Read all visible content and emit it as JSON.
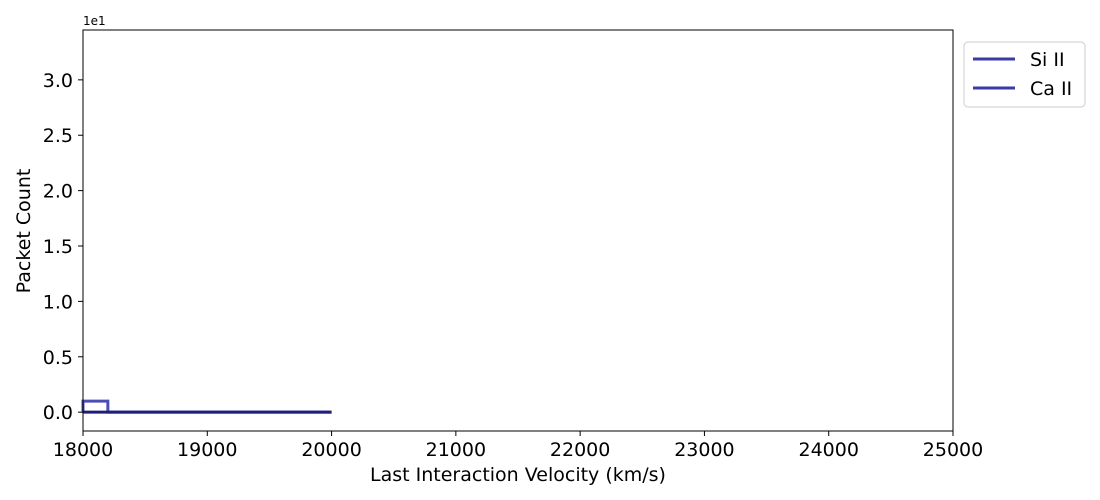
{
  "chart_data": {
    "type": "line",
    "drawstyle": "steps",
    "title": "",
    "xlabel": "Last Interaction Velocity (km/s)",
    "ylabel": "Packet Count",
    "y_offset_label": "1e1",
    "xlim": [
      18000,
      25000
    ],
    "ylim": [
      -0.17,
      3.45
    ],
    "x_ticks": [
      18000,
      19000,
      20000,
      21000,
      22000,
      23000,
      24000,
      25000
    ],
    "x_tick_labels": [
      "18000",
      "19000",
      "20000",
      "21000",
      "22000",
      "23000",
      "24000",
      "25000"
    ],
    "y_ticks": [
      0.0,
      0.5,
      1.0,
      1.5,
      2.0,
      2.5,
      3.0
    ],
    "y_tick_labels": [
      "0.0",
      "0.5",
      "1.0",
      "1.5",
      "2.0",
      "2.5",
      "3.0"
    ],
    "grid": false,
    "legend_position": "outside top-right",
    "series": [
      {
        "name": "Si II",
        "color": "#3b3ba8",
        "bin_edges": [
          18000,
          18200,
          20000
        ],
        "counts": [
          0.1,
          0.0
        ]
      },
      {
        "name": "Ca II",
        "color": "#1f1f7a",
        "bin_edges": [
          18000,
          18200,
          20000
        ],
        "counts": [
          0.0,
          0.0
        ]
      }
    ]
  }
}
